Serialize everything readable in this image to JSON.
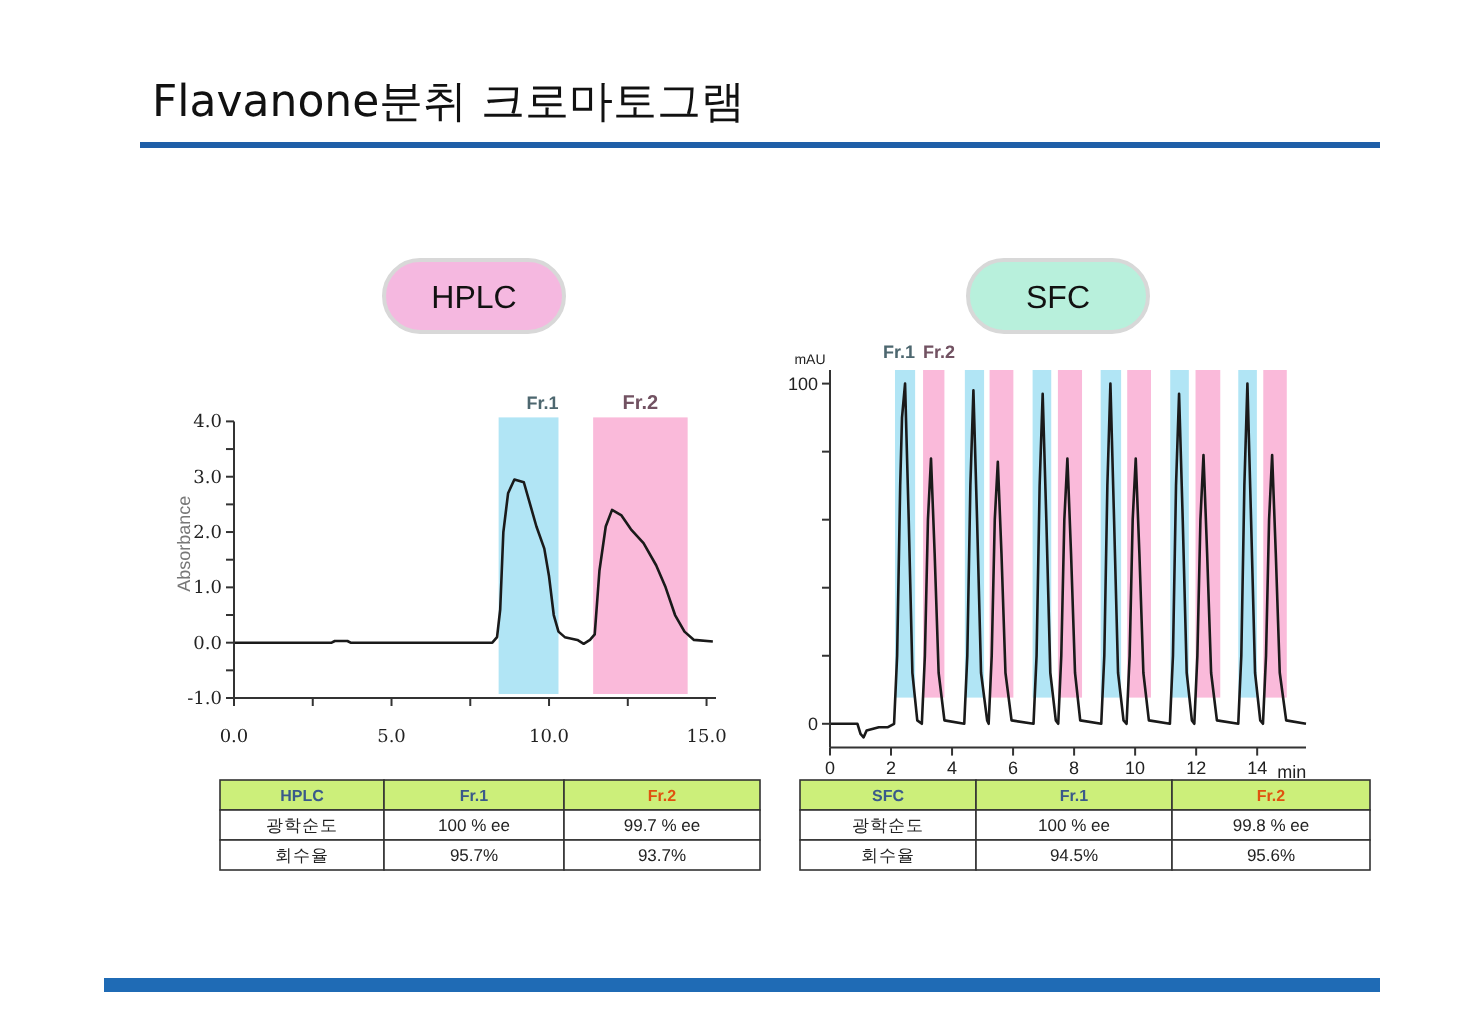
{
  "chart_data": [
    {
      "type": "other",
      "title": "Flavanone분취 크로마토그램"
    },
    {
      "type": "line",
      "title": "HPLC",
      "ylabel": "Absorbance",
      "xlim": [
        0,
        15.3
      ],
      "ylim": [
        -1,
        4
      ],
      "xticks": [
        {
          "value": 0,
          "label": "0.0"
        },
        {
          "value": 2.5,
          "label": null
        },
        {
          "value": 5,
          "label": "5.0"
        },
        {
          "value": 7.5,
          "label": null
        },
        {
          "value": 10,
          "label": "10.0"
        },
        {
          "value": 12.5,
          "label": null
        },
        {
          "value": 15,
          "label": "15.0"
        }
      ],
      "yticks": [
        {
          "value": -1,
          "label": "-1.0"
        },
        {
          "value": -0.5,
          "label": null
        },
        {
          "value": 0,
          "label": "0.0"
        },
        {
          "value": 0.5,
          "label": null
        },
        {
          "value": 1,
          "label": "1.0"
        },
        {
          "value": 1.5,
          "label": null
        },
        {
          "value": 2,
          "label": "2.0"
        },
        {
          "value": 2.5,
          "label": null
        },
        {
          "value": 3,
          "label": "3.0"
        },
        {
          "value": 3.5,
          "label": null
        },
        {
          "value": 4,
          "label": "4.0"
        }
      ],
      "series": [
        {
          "color": "#1a1a1a",
          "x": [
            0,
            3.1,
            3.2,
            3.6,
            3.7,
            8.2,
            8.35,
            8.45,
            8.55,
            8.7,
            8.9,
            9.2,
            9.4,
            9.6,
            9.85,
            10.0,
            10.15,
            10.3,
            10.5,
            10.9,
            11.1,
            11.3,
            11.45,
            11.6,
            11.8,
            12.0,
            12.3,
            12.6,
            13.0,
            13.4,
            13.7,
            14.0,
            14.3,
            14.6,
            15.2
          ],
          "values": [
            0,
            0,
            0.03,
            0.03,
            0,
            0,
            0.1,
            0.6,
            2.0,
            2.7,
            2.95,
            2.9,
            2.5,
            2.1,
            1.7,
            1.2,
            0.5,
            0.2,
            0.1,
            0.05,
            -0.02,
            0.05,
            0.15,
            1.3,
            2.1,
            2.4,
            2.3,
            2.05,
            1.8,
            1.4,
            1.0,
            0.5,
            0.2,
            0.05,
            0.02
          ]
        }
      ],
      "bands": [
        {
          "axis": "x",
          "from": 8.4,
          "to": 10.3,
          "label": "Fr.1",
          "color": "#a8e2f4"
        },
        {
          "axis": "x",
          "from": 11.4,
          "to": 14.4,
          "label": "Fr.2",
          "color": "#f9b3d6"
        }
      ],
      "annotations": [
        "HPLC",
        "Fr.1",
        "Fr.2",
        "광학순도",
        "100 % ee",
        "99.7 % ee",
        "회수율",
        "95.7%",
        "93.7%"
      ]
    },
    {
      "type": "line",
      "title": "SFC",
      "ylabel": "mAU",
      "xlabel": "min",
      "xlim": [
        0,
        15.6
      ],
      "ylim": [
        -7,
        104
      ],
      "xticks": [
        0,
        2,
        4,
        6,
        8,
        10,
        12,
        14
      ],
      "yticks": [
        0,
        {
          "value": 20,
          "label": null
        },
        {
          "value": 40,
          "label": null
        },
        {
          "value": 60,
          "label": null
        },
        {
          "value": 80,
          "label": null
        },
        100
      ],
      "series": [
        {
          "color": "#1a1a1a",
          "x": [
            0,
            0.9,
            1.0,
            1.1,
            1.2,
            1.6,
            1.9,
            2.1,
            2.2,
            2.3,
            2.36,
            2.46,
            2.58,
            2.7,
            2.86,
            3.01,
            3.11,
            3.21,
            3.31,
            3.43,
            3.56,
            3.75,
            4.4,
            4.5,
            4.6,
            4.7,
            4.82,
            4.95,
            5.15,
            5.2,
            5.3,
            5.4,
            5.5,
            5.62,
            5.75,
            5.95,
            6.67,
            6.77,
            6.87,
            6.97,
            7.09,
            7.22,
            7.4,
            7.48,
            7.58,
            7.68,
            7.78,
            7.9,
            8.03,
            8.2,
            8.89,
            8.99,
            9.09,
            9.19,
            9.31,
            9.44,
            9.62,
            9.72,
            9.82,
            9.92,
            10.02,
            10.14,
            10.27,
            10.45,
            11.14,
            11.24,
            11.34,
            11.44,
            11.56,
            11.69,
            11.86,
            11.94,
            12.04,
            12.14,
            12.24,
            12.36,
            12.49,
            12.68,
            13.38,
            13.48,
            13.58,
            13.68,
            13.8,
            13.93,
            14.1,
            14.19,
            14.29,
            14.39,
            14.49,
            14.61,
            14.74,
            14.95,
            15.6
          ],
          "values": [
            0,
            0,
            -3,
            -4,
            -2,
            -1,
            -1,
            0,
            20,
            70,
            90,
            100,
            60,
            15,
            1,
            0,
            20,
            60,
            78,
            50,
            15,
            1,
            0,
            20,
            70,
            98,
            60,
            15,
            1,
            0,
            20,
            60,
            77,
            50,
            15,
            1,
            0,
            20,
            70,
            97,
            60,
            15,
            1,
            0,
            20,
            60,
            78,
            50,
            15,
            1,
            0,
            20,
            70,
            100,
            60,
            15,
            1,
            0,
            20,
            60,
            78,
            50,
            15,
            1,
            0,
            20,
            70,
            97,
            60,
            15,
            1,
            0,
            20,
            60,
            79,
            50,
            15,
            1,
            0,
            20,
            70,
            100,
            60,
            15,
            1,
            0,
            20,
            60,
            79,
            50,
            15,
            1,
            0
          ]
        }
      ],
      "bands": [
        {
          "axis": "x",
          "from": 2.13,
          "to": 2.79,
          "label": "Fr.1",
          "color": "#a8e2f4"
        },
        {
          "axis": "x",
          "from": 3.05,
          "to": 3.75,
          "label": "Fr.2",
          "color": "#f9b3d6"
        },
        {
          "axis": "x",
          "from": 4.42,
          "to": 5.05,
          "color": "#a8e2f4"
        },
        {
          "axis": "x",
          "from": 5.23,
          "to": 6.01,
          "color": "#f9b3d6"
        },
        {
          "axis": "x",
          "from": 6.64,
          "to": 7.25,
          "color": "#a8e2f4"
        },
        {
          "axis": "x",
          "from": 7.47,
          "to": 8.26,
          "color": "#f9b3d6"
        },
        {
          "axis": "x",
          "from": 8.87,
          "to": 9.54,
          "color": "#a8e2f4"
        },
        {
          "axis": "x",
          "from": 9.74,
          "to": 10.52,
          "color": "#f9b3d6"
        },
        {
          "axis": "x",
          "from": 11.15,
          "to": 11.76,
          "color": "#a8e2f4"
        },
        {
          "axis": "x",
          "from": 11.98,
          "to": 12.79,
          "color": "#f9b3d6"
        },
        {
          "axis": "x",
          "from": 13.38,
          "to": 13.99,
          "color": "#a8e2f4"
        },
        {
          "axis": "x",
          "from": 14.2,
          "to": 14.97,
          "color": "#f9b3d6"
        }
      ],
      "annotations": [
        "SFC",
        "Fr.1",
        "Fr.2",
        "광학순도",
        "100 % ee",
        "99.8 % ee",
        "회수율",
        "94.5%",
        "95.6%"
      ]
    }
  ]
}
